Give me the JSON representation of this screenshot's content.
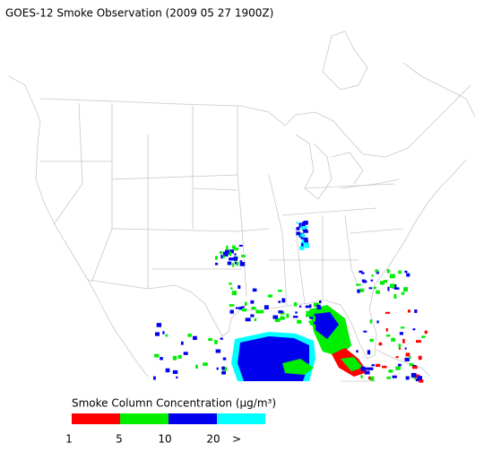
{
  "title": "GOES-12 Smoke Observation (2009 05 27  1900Z)",
  "legend": {
    "title": "Smoke Column Concentration (μg/m³)",
    "colors": [
      "#ff0000",
      "#00ee00",
      "#0000ee",
      "#00ffff"
    ],
    "ticks": [
      "1",
      "5",
      "10",
      "20",
      ">"
    ]
  }
}
